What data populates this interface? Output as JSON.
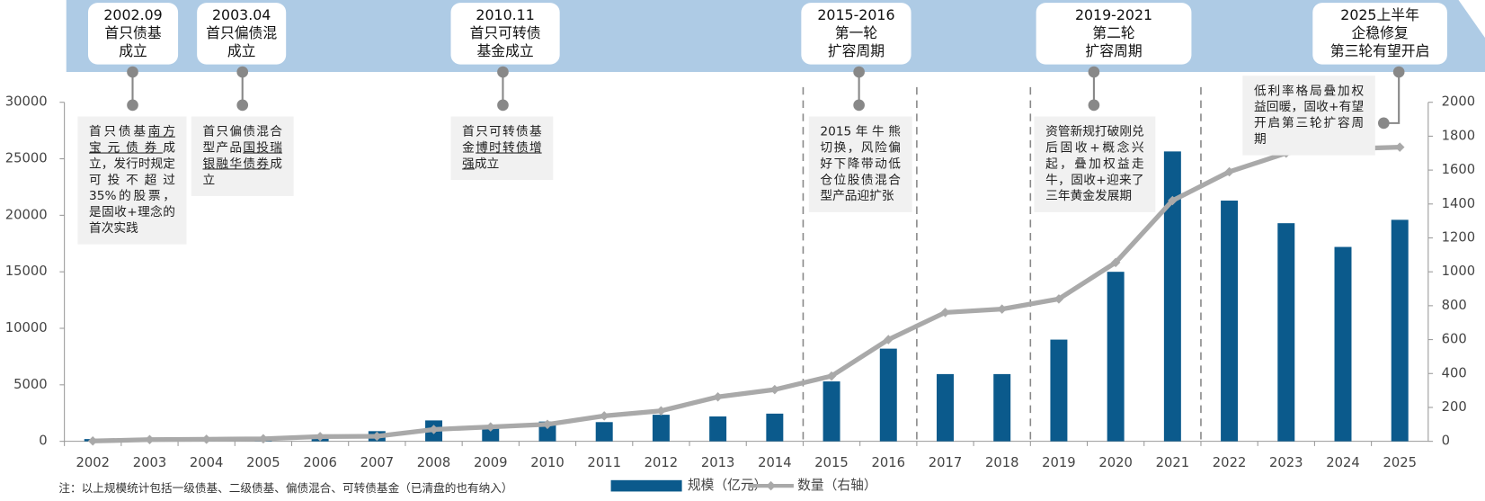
{
  "chart_data": {
    "type": "bar_line",
    "categories": [
      "2002",
      "2003",
      "2004",
      "2005",
      "2006",
      "2007",
      "2008",
      "2009",
      "2010",
      "2011",
      "2012",
      "2013",
      "2014",
      "2015",
      "2016",
      "2017",
      "2018",
      "2019",
      "2020",
      "2021",
      "2022",
      "2023",
      "2024",
      "2025"
    ],
    "series": [
      {
        "name": "规模（亿元）",
        "type": "bar",
        "color": "#0b5a8c",
        "values": [
          200,
          200,
          200,
          300,
          500,
          900,
          1850,
          1350,
          1750,
          1700,
          2350,
          2200,
          2450,
          5300,
          8200,
          5950,
          5950,
          9000,
          15000,
          25650,
          21300,
          19300,
          17200,
          19600
        ]
      },
      {
        "name": "数量（右轴）",
        "type": "line",
        "axis": "y2",
        "color": "#a9a9a9",
        "values": [
          2,
          10,
          12,
          15,
          28,
          30,
          70,
          85,
          100,
          150,
          180,
          262,
          305,
          385,
          600,
          760,
          780,
          840,
          1055,
          1420,
          1590,
          1700,
          1725,
          1735
        ]
      }
    ],
    "ylim": [
      0,
      30000
    ],
    "yticks": [
      0,
      5000,
      10000,
      15000,
      20000,
      25000,
      30000
    ],
    "y2lim": [
      0,
      2000
    ],
    "y2ticks": [
      0,
      200,
      400,
      600,
      800,
      1000,
      1200,
      1400,
      1600,
      1800,
      2000
    ],
    "milestones": [
      {
        "title": [
          "2002.09",
          "首只债基",
          "成立"
        ],
        "note": [
          "首只债基",
          "南方宝元债券",
          "成立，发行时规定可投不超过35%的股票，是固收+理念的首次实践"
        ],
        "underline": [
          1
        ]
      },
      {
        "title": [
          "2003.04",
          "首只偏债混",
          "成立"
        ],
        "note": [
          "首只偏债混合型产品",
          "国投瑞银融华债券",
          "成立"
        ],
        "underline": [
          1
        ]
      },
      {
        "title": [
          "2010.11",
          "首只可转债",
          "基金成立"
        ],
        "note": [
          "首只可转债基金",
          "博时转债增强",
          "成立"
        ],
        "underline": [
          1
        ]
      },
      {
        "title": [
          "2015-2016",
          "第一轮",
          "扩容周期"
        ],
        "note": [
          "2015年牛熊切换，风险偏好下降带动低仓位股债混合型产品迎扩张"
        ],
        "underline": []
      },
      {
        "title": [
          "2019-2021",
          "第二轮",
          "扩容周期"
        ],
        "note": [
          "资管新规打破刚兑后固收+概念兴起，叠加权益走牛，固收+迎来了三年黄金发展期"
        ],
        "underline": []
      },
      {
        "title": [
          "2025上半年",
          "企稳修复",
          "第三轮有望开启"
        ],
        "note": [
          "低利率格局叠加权益回暖，固收+有望开启第三轮扩容周期"
        ],
        "underline": []
      }
    ],
    "footnote": "注：以上规模统计包括一级债基、二级债基、偏债混合、可转债基金（已清盘的也有纳入）"
  }
}
